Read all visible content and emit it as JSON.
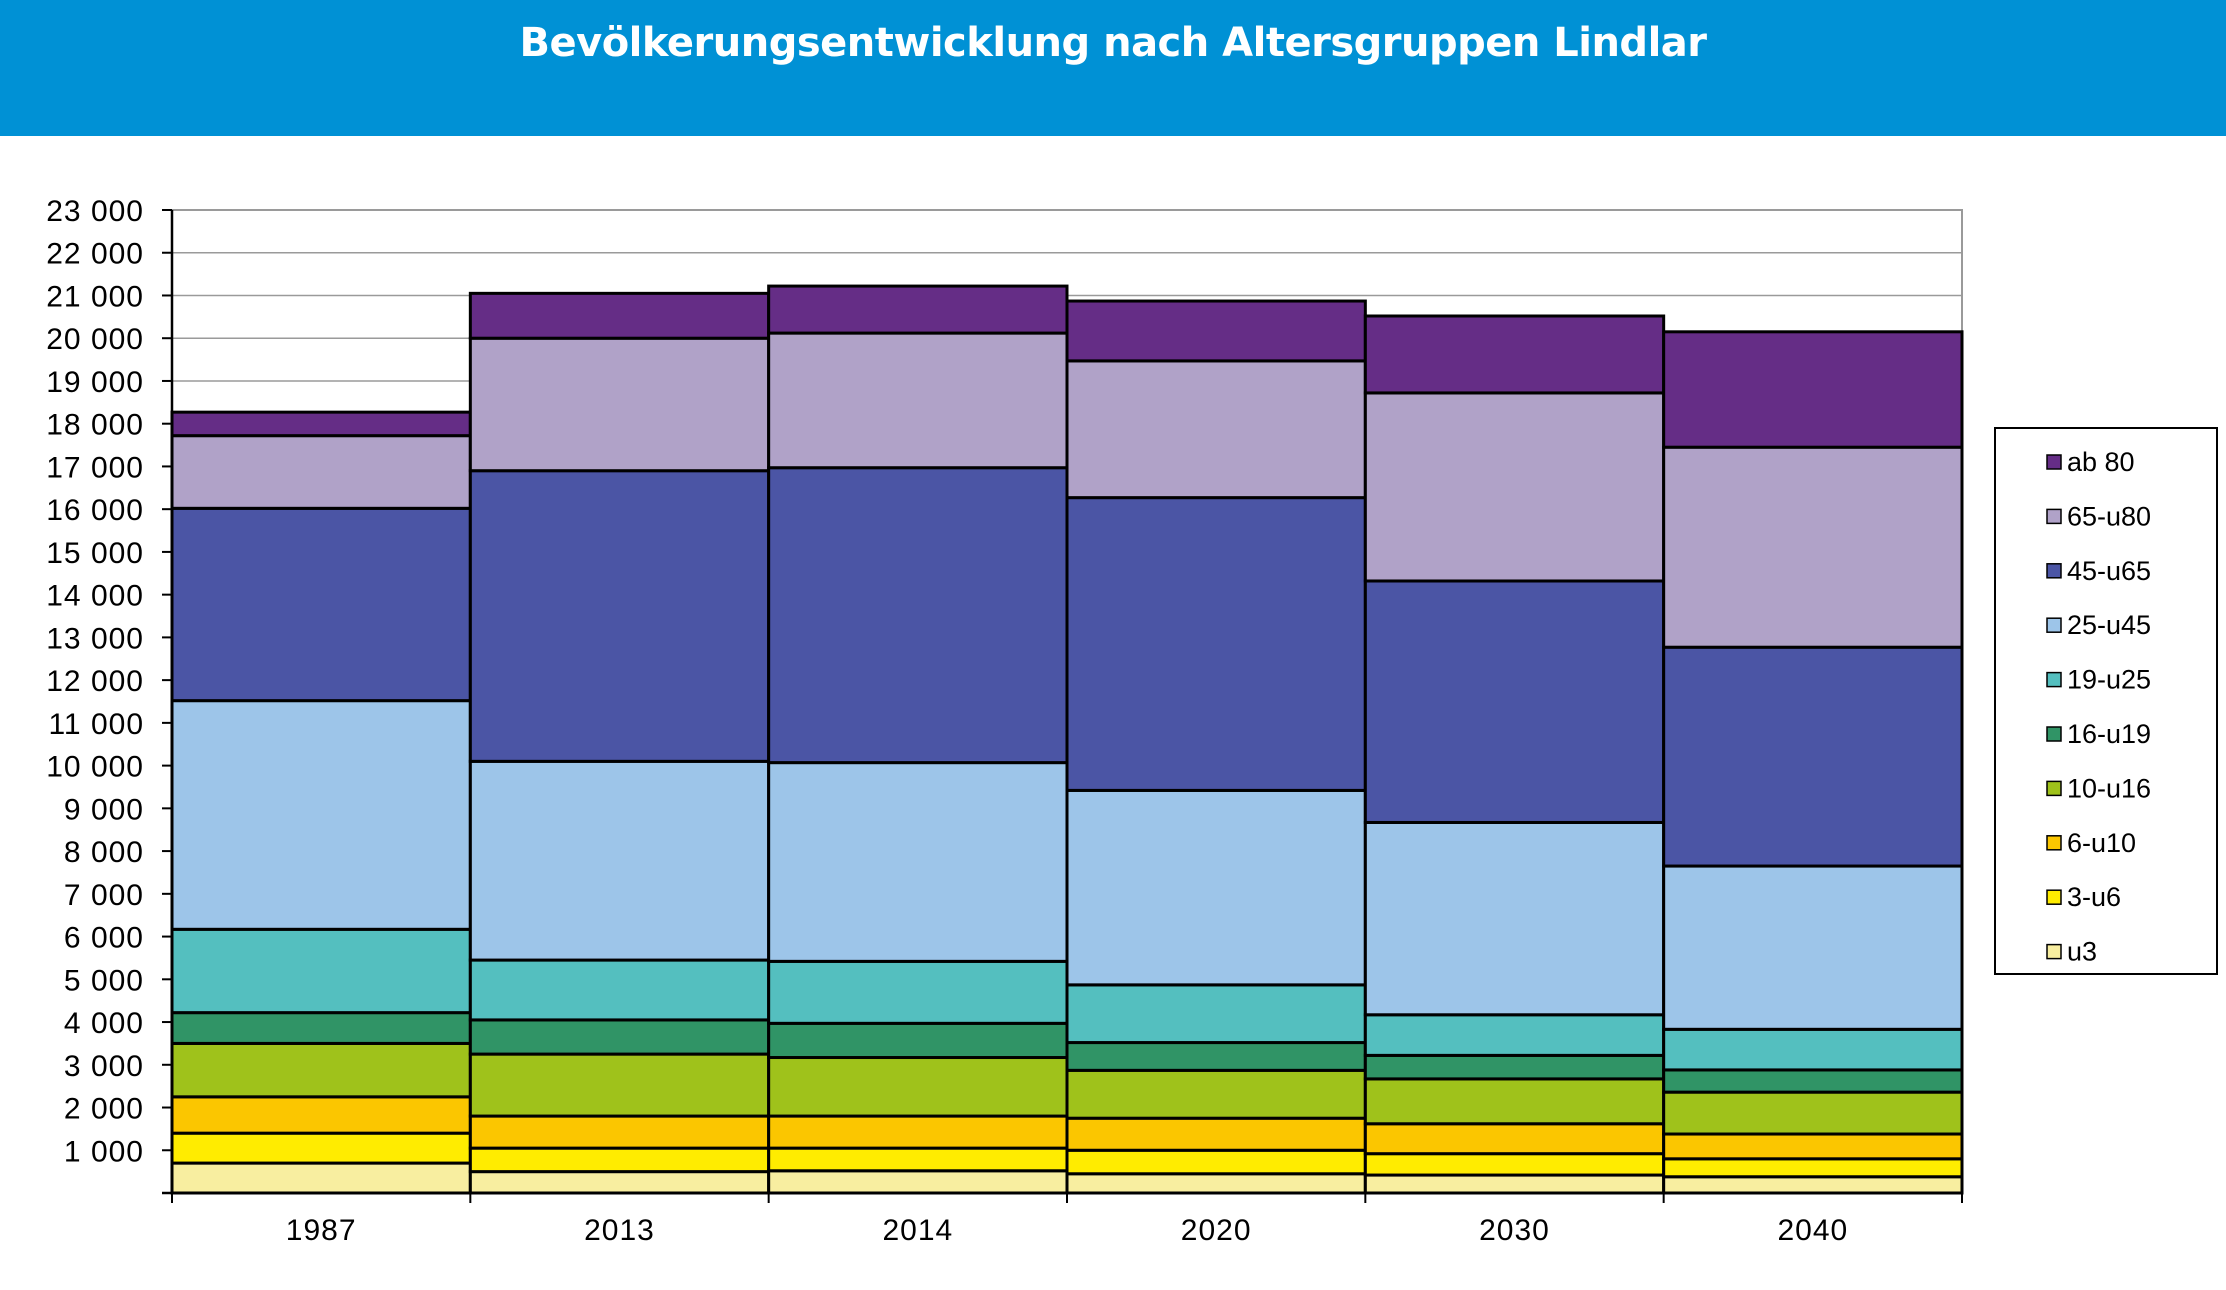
{
  "chart_data": {
    "type": "bar",
    "stacked": true,
    "title": "Bevölkerungsentwicklung nach Altersgruppen Lindlar",
    "xlabel": "",
    "ylabel": "",
    "ylim": [
      0,
      23000
    ],
    "y_ticks": [
      0,
      1000,
      2000,
      3000,
      4000,
      5000,
      6000,
      7000,
      8000,
      9000,
      10000,
      11000,
      12000,
      13000,
      14000,
      15000,
      16000,
      17000,
      18000,
      19000,
      20000,
      21000,
      22000,
      23000
    ],
    "y_tick_labels": [
      "",
      "1 000",
      "2 000",
      "3 000",
      "4 000",
      "5 000",
      "6 000",
      "7 000",
      "8 000",
      "9 000",
      "10 000",
      "11 000",
      "12 000",
      "13 000",
      "14 000",
      "15 000",
      "16 000",
      "17 000",
      "18 000",
      "19 000",
      "20 000",
      "21 000",
      "22 000",
      "23 000"
    ],
    "grid": true,
    "legend_position": "right",
    "categories": [
      "1987",
      "2013",
      "2014",
      "2020",
      "2030",
      "2040"
    ],
    "series": [
      {
        "name": "u3",
        "color": "#f8eea0",
        "values": [
          700,
          500,
          520,
          450,
          420,
          380
        ]
      },
      {
        "name": "3-u6",
        "color": "#ffec00",
        "values": [
          700,
          550,
          530,
          550,
          500,
          420
        ]
      },
      {
        "name": "6-u10",
        "color": "#fbc600",
        "values": [
          850,
          750,
          750,
          750,
          700,
          580
        ]
      },
      {
        "name": "10-u16",
        "color": "#9fc21b",
        "values": [
          1250,
          1450,
          1370,
          1120,
          1050,
          980
        ]
      },
      {
        "name": "16-u19",
        "color": "#309466",
        "values": [
          720,
          800,
          800,
          650,
          550,
          520
        ]
      },
      {
        "name": "19-u25",
        "color": "#54bfbf",
        "values": [
          1950,
          1400,
          1450,
          1350,
          950,
          950
        ]
      },
      {
        "name": "25-u45",
        "color": "#9dc5e9",
        "values": [
          5350,
          4650,
          4650,
          4550,
          4500,
          3820
        ]
      },
      {
        "name": "45-u65",
        "color": "#4b55a5",
        "values": [
          4500,
          6800,
          6900,
          6850,
          5650,
          5120
        ]
      },
      {
        "name": "65-u80",
        "color": "#b0a2c8",
        "values": [
          1700,
          3100,
          3150,
          3200,
          4400,
          4680
        ]
      },
      {
        "name": "ab 80",
        "color": "#652d86",
        "values": [
          550,
          1050,
          1100,
          1400,
          1800,
          2700
        ]
      }
    ]
  }
}
